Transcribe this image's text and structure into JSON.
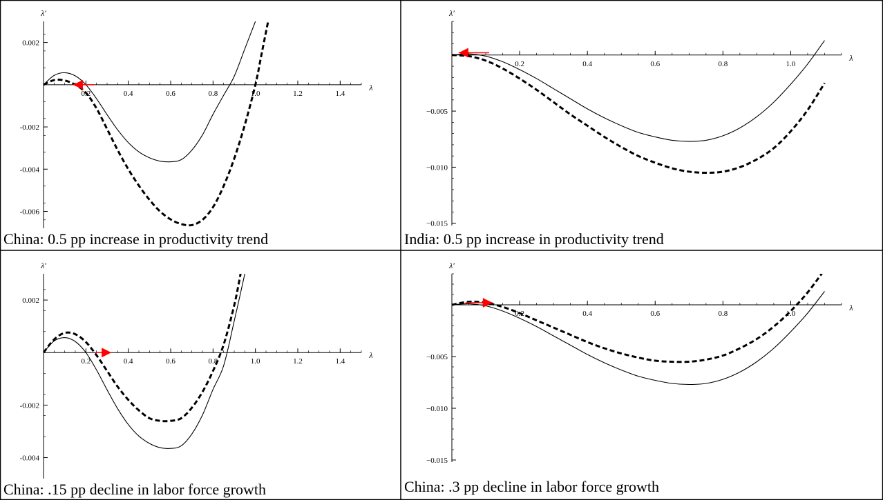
{
  "chart_data": [
    {
      "type": "line",
      "caption": "China: 0.5 pp increase in productivity trend",
      "xlabel": "λ",
      "ylabel": "λ′",
      "xlim": [
        0,
        1.5
      ],
      "ylim": [
        -0.0068,
        0.003
      ],
      "xticks": [
        0.2,
        0.4,
        0.6,
        0.8,
        1.0,
        1.2,
        1.4
      ],
      "xtick_labels": [
        "0.2",
        "0.4",
        "0.6",
        "0.8",
        "1.0",
        "1.2",
        "1.4"
      ],
      "yticks": [
        0.002,
        -0.002,
        -0.004,
        -0.006
      ],
      "ytick_labels": [
        "0.002",
        "-0.002",
        "-0.004",
        "-0.006"
      ],
      "series": [
        {
          "style": "solid",
          "x": [
            0,
            0.05,
            0.1,
            0.15,
            0.2,
            0.25,
            0.3,
            0.35,
            0.4,
            0.45,
            0.5,
            0.55,
            0.6,
            0.65,
            0.7,
            0.75,
            0.8,
            0.85,
            0.9,
            0.95,
            1.0
          ],
          "y": [
            0,
            0.00044,
            0.00057,
            0.00042,
            0,
            -0.00066,
            -0.00142,
            -0.00214,
            -0.00274,
            -0.00318,
            -0.00346,
            -0.00362,
            -0.00365,
            -0.00355,
            -0.0031,
            -0.00238,
            -0.0014,
            -0.0005,
            0.0004,
            0.0017,
            0.003
          ]
        },
        {
          "style": "dashed",
          "x": [
            0,
            0.05,
            0.1,
            0.15,
            0.2,
            0.25,
            0.3,
            0.35,
            0.4,
            0.45,
            0.5,
            0.55,
            0.6,
            0.65,
            0.7,
            0.75,
            0.8,
            0.85,
            0.9,
            0.95,
            1.0,
            1.03,
            1.06
          ],
          "y": [
            0,
            0.00022,
            0.0002,
            0,
            -0.00038,
            -0.00112,
            -0.0021,
            -0.0031,
            -0.004,
            -0.00478,
            -0.00545,
            -0.006,
            -0.00638,
            -0.0066,
            -0.00665,
            -0.0064,
            -0.0058,
            -0.0048,
            -0.0035,
            -0.0019,
            0,
            0.0015,
            0.003
          ]
        }
      ],
      "arrow": {
        "direction": "left",
        "x_from": 0.24,
        "x_to": 0.14,
        "y": 0
      },
      "arrow_color": "#ff0000"
    },
    {
      "type": "line",
      "caption": "India: 0.5 pp increase in productivity trend",
      "xlabel": "λ",
      "ylabel": "λ′",
      "xlim": [
        0,
        1.15
      ],
      "ylim": [
        -0.0152,
        0.003
      ],
      "xticks": [
        0.2,
        0.4,
        0.6,
        0.8,
        1.0
      ],
      "xtick_labels": [
        "0.2",
        "0.4",
        "0.6",
        "0.8",
        "1.0"
      ],
      "yticks": [
        -0.005,
        -0.01,
        -0.015
      ],
      "ytick_labels": [
        "−0.005",
        "−0.010",
        "−0.015"
      ],
      "series": [
        {
          "style": "solid",
          "x": [
            0,
            0.05,
            0.1,
            0.15,
            0.2,
            0.25,
            0.3,
            0.35,
            0.4,
            0.45,
            0.5,
            0.55,
            0.6,
            0.65,
            0.7,
            0.75,
            0.8,
            0.85,
            0.9,
            0.95,
            1.0,
            1.05,
            1.1
          ],
          "y": [
            0,
            0.0001,
            -0.0001,
            -0.0006,
            -0.0013,
            -0.0021,
            -0.003,
            -0.0039,
            -0.0048,
            -0.0056,
            -0.0063,
            -0.0069,
            -0.0073,
            -0.0076,
            -0.0077,
            -0.0076,
            -0.0072,
            -0.0065,
            -0.0055,
            -0.0042,
            -0.0026,
            -0.0008,
            0.0013
          ]
        },
        {
          "style": "dashed",
          "x": [
            0,
            0.05,
            0.1,
            0.15,
            0.2,
            0.25,
            0.3,
            0.35,
            0.4,
            0.45,
            0.5,
            0.55,
            0.6,
            0.65,
            0.7,
            0.75,
            0.8,
            0.85,
            0.9,
            0.95,
            1.0,
            1.05,
            1.1
          ],
          "y": [
            0,
            -0.0001,
            -0.0005,
            -0.0012,
            -0.0021,
            -0.0031,
            -0.0042,
            -0.0053,
            -0.0063,
            -0.0073,
            -0.0082,
            -0.009,
            -0.0096,
            -0.0101,
            -0.0104,
            -0.0105,
            -0.0104,
            -0.01,
            -0.0093,
            -0.0083,
            -0.0068,
            -0.0049,
            -0.0025
          ]
        }
      ],
      "arrow": {
        "direction": "left",
        "x_from": 0.11,
        "x_to": 0.02,
        "y": 0.0002
      },
      "arrow_color": "#ff0000"
    },
    {
      "type": "line",
      "caption": "China: .15 pp decline in labor force growth",
      "xlabel": "λ",
      "ylabel": "λ′",
      "xlim": [
        0,
        1.5
      ],
      "ylim": [
        -0.0048,
        0.003
      ],
      "xticks": [
        0.2,
        0.4,
        0.6,
        0.8,
        1.0,
        1.2,
        1.4
      ],
      "xtick_labels": [
        "0.2",
        "0.4",
        "0.6",
        "0.8",
        "1.0",
        "1.2",
        "1.4"
      ],
      "yticks": [
        0.002,
        -0.002,
        -0.004
      ],
      "ytick_labels": [
        "0.002",
        "-0.002",
        "-0.004"
      ],
      "series": [
        {
          "style": "solid",
          "x": [
            0,
            0.05,
            0.1,
            0.15,
            0.2,
            0.25,
            0.3,
            0.35,
            0.4,
            0.45,
            0.5,
            0.55,
            0.6,
            0.65,
            0.7,
            0.75,
            0.8,
            0.85,
            0.9,
            0.95
          ],
          "y": [
            0,
            0.00044,
            0.00057,
            0.00042,
            0,
            -0.00066,
            -0.00142,
            -0.00214,
            -0.00274,
            -0.00318,
            -0.00346,
            -0.00362,
            -0.00365,
            -0.00355,
            -0.0031,
            -0.00238,
            -0.0014,
            -0.0005,
            0.0012,
            0.003
          ]
        },
        {
          "style": "dashed",
          "x": [
            0,
            0.05,
            0.1,
            0.15,
            0.2,
            0.25,
            0.3,
            0.35,
            0.4,
            0.45,
            0.5,
            0.55,
            0.6,
            0.65,
            0.7,
            0.75,
            0.8,
            0.85,
            0.9,
            0.93
          ],
          "y": [
            0,
            0.0005,
            0.00075,
            0.0007,
            0.0004,
            -0.0001,
            -0.0007,
            -0.0013,
            -0.0018,
            -0.0022,
            -0.0025,
            -0.0026,
            -0.0026,
            -0.0025,
            -0.0021,
            -0.0015,
            -0.0007,
            0.0003,
            0.0018,
            0.003
          ]
        }
      ],
      "arrow": {
        "direction": "right",
        "x_from": 0.24,
        "x_to": 0.32,
        "y": 0
      },
      "arrow_color": "#ff0000"
    },
    {
      "type": "line",
      "caption": "China: .3 pp decline in labor force growth",
      "xlabel": "λ",
      "ylabel": "λ′",
      "xlim": [
        0,
        1.15
      ],
      "ylim": [
        -0.0152,
        0.003
      ],
      "xticks": [
        0.2,
        0.4,
        0.6,
        0.8,
        1.0
      ],
      "xtick_labels": [
        "0.2",
        "0.4",
        "0.6",
        "0.8",
        "1.0"
      ],
      "yticks": [
        -0.005,
        -0.01,
        -0.015
      ],
      "ytick_labels": [
        "−0.005",
        "−0.010",
        "−0.015"
      ],
      "series": [
        {
          "style": "solid",
          "x": [
            0,
            0.05,
            0.1,
            0.15,
            0.2,
            0.25,
            0.3,
            0.35,
            0.4,
            0.45,
            0.5,
            0.55,
            0.6,
            0.65,
            0.7,
            0.75,
            0.8,
            0.85,
            0.9,
            0.95,
            1.0,
            1.05,
            1.1
          ],
          "y": [
            0,
            0.0001,
            -0.0001,
            -0.0006,
            -0.0013,
            -0.0021,
            -0.003,
            -0.0039,
            -0.0048,
            -0.0056,
            -0.0063,
            -0.0069,
            -0.0073,
            -0.0076,
            -0.0077,
            -0.0076,
            -0.0072,
            -0.0065,
            -0.0055,
            -0.0042,
            -0.0026,
            -0.0008,
            0.0013
          ]
        },
        {
          "style": "dashed",
          "x": [
            0,
            0.05,
            0.1,
            0.15,
            0.2,
            0.25,
            0.3,
            0.35,
            0.4,
            0.45,
            0.5,
            0.55,
            0.6,
            0.65,
            0.7,
            0.75,
            0.8,
            0.85,
            0.9,
            0.95,
            1.0,
            1.05,
            1.1
          ],
          "y": [
            0,
            0.0003,
            0.0002,
            -0.0002,
            -0.0008,
            -0.0015,
            -0.0022,
            -0.0029,
            -0.0036,
            -0.0042,
            -0.0047,
            -0.0051,
            -0.0054,
            -0.0055,
            -0.0055,
            -0.0053,
            -0.0049,
            -0.0042,
            -0.0033,
            -0.0021,
            -0.0006,
            0.0012,
            0.0034
          ]
        }
      ],
      "arrow": {
        "direction": "right",
        "x_from": 0.04,
        "x_to": 0.12,
        "y": 0.0002
      },
      "arrow_color": "#ff0000"
    }
  ]
}
